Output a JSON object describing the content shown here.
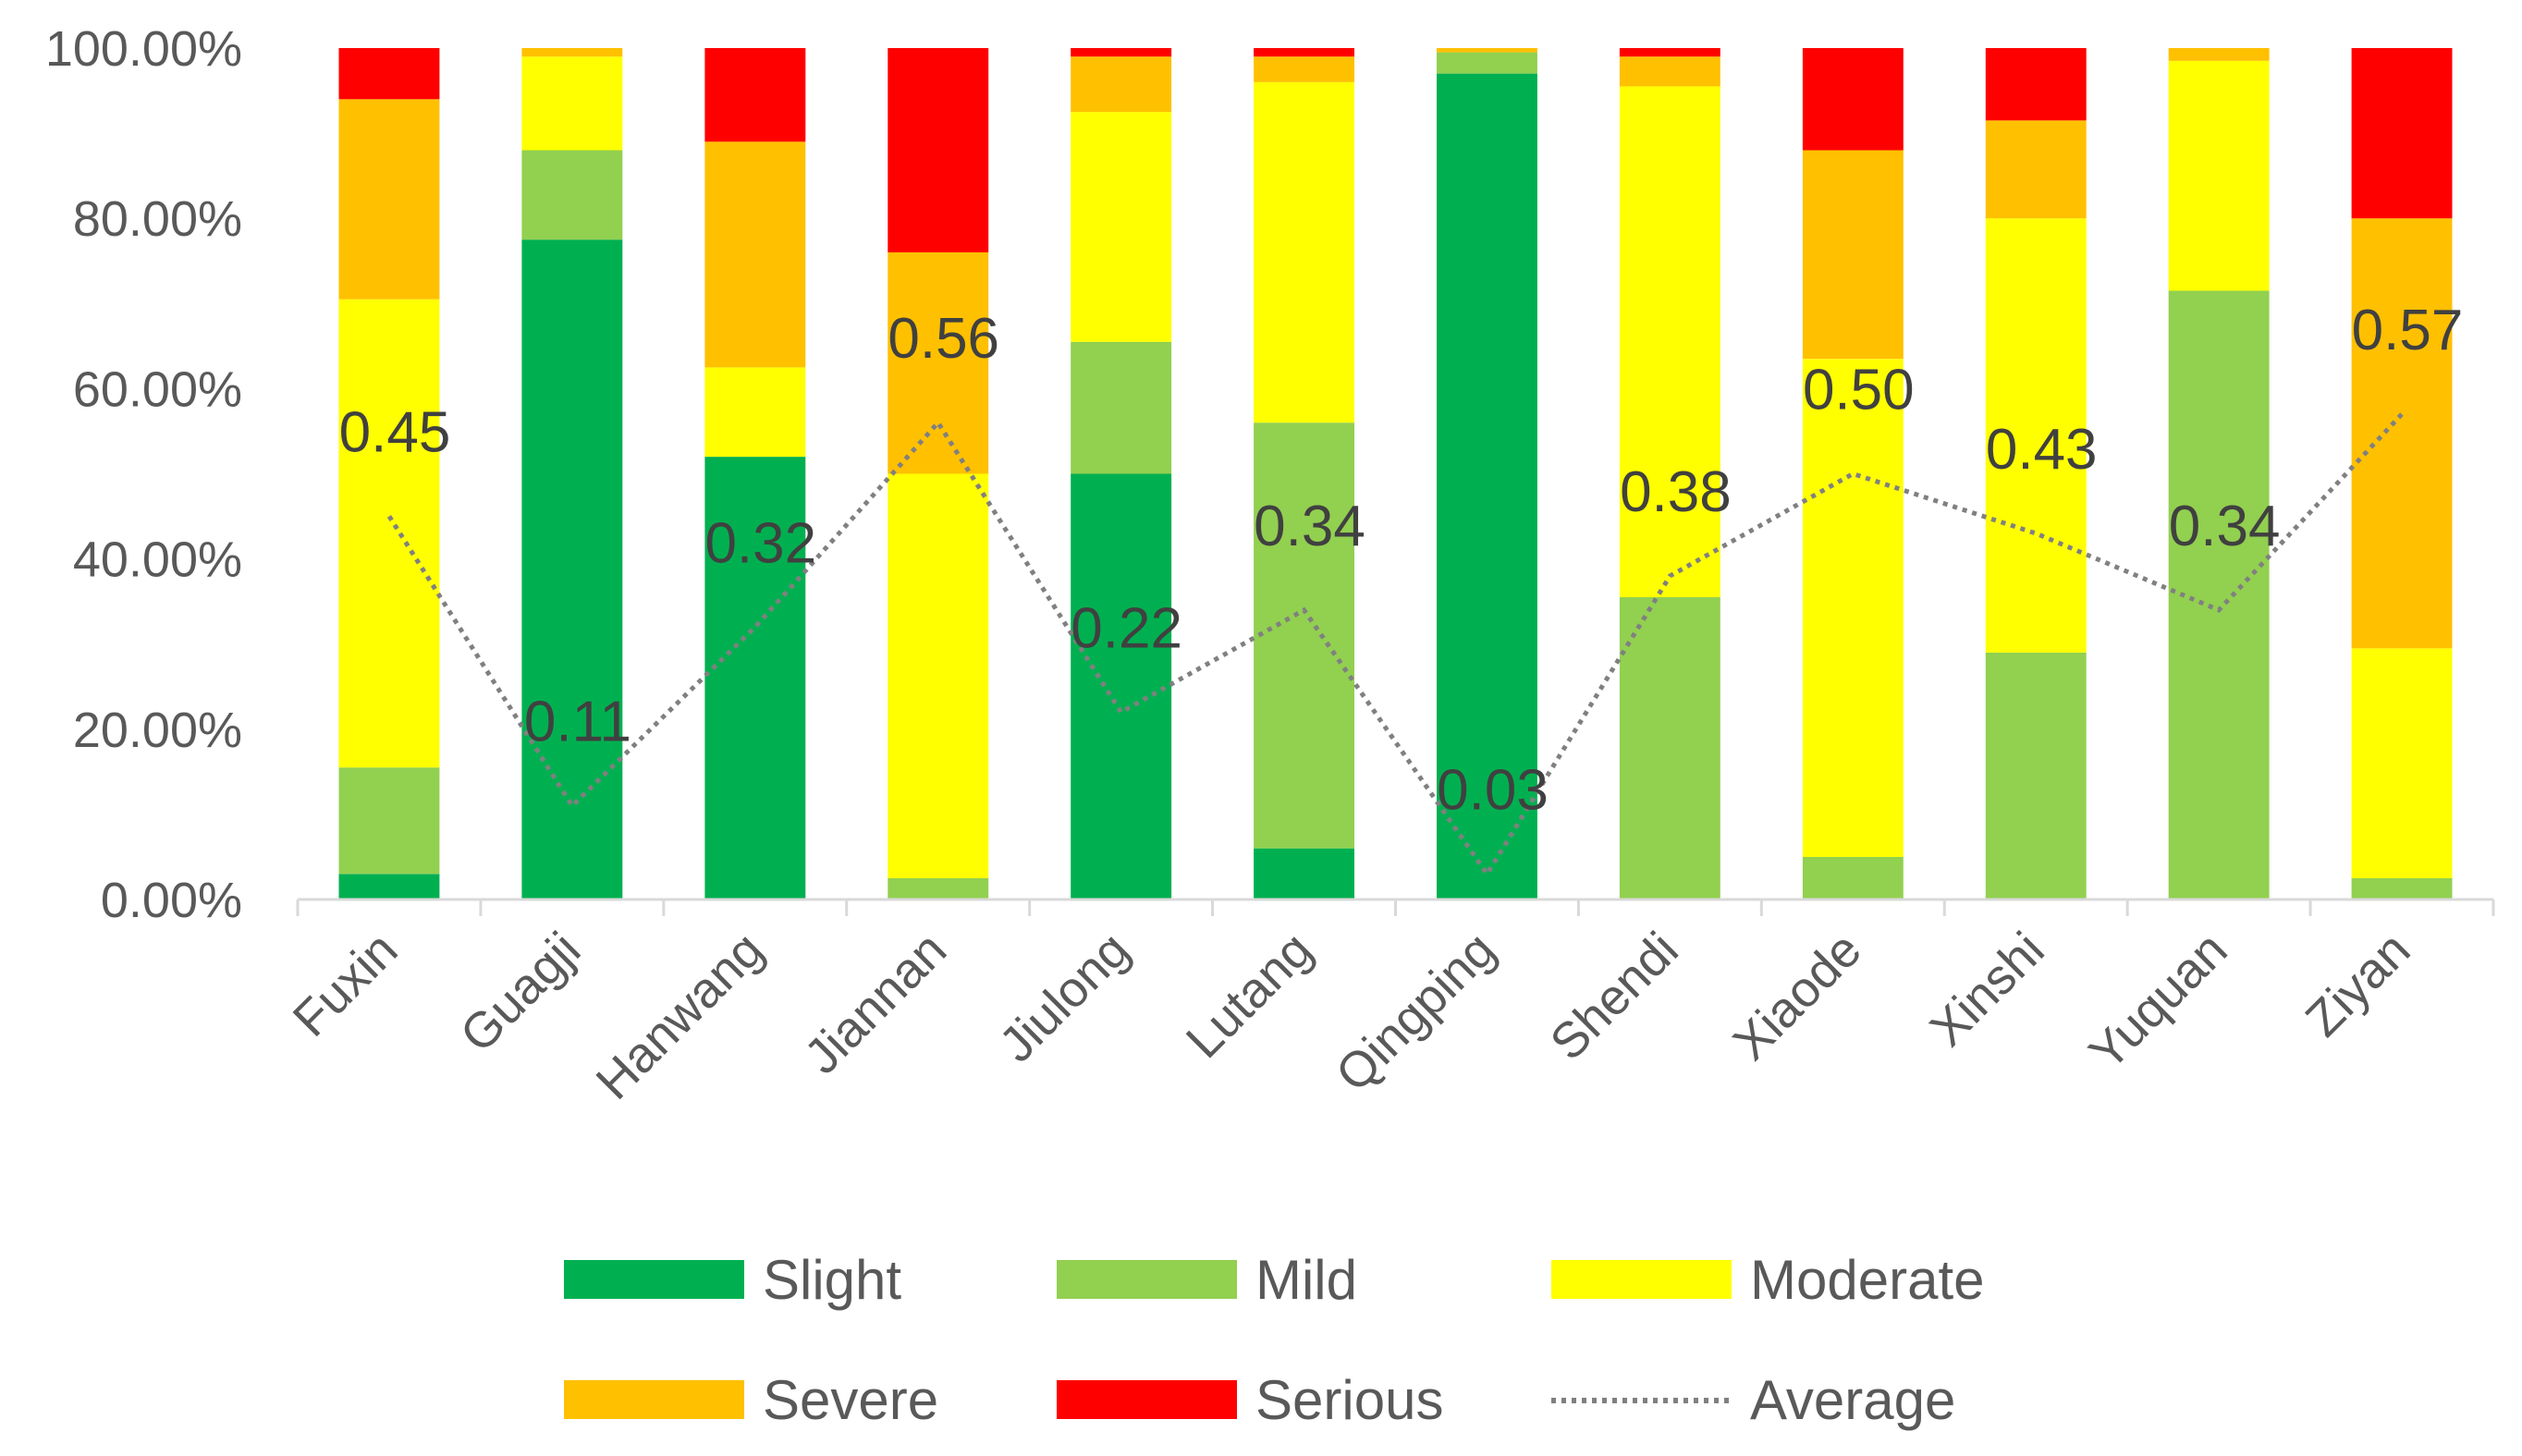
{
  "chart_data": {
    "type": "bar",
    "stacked": true,
    "categories": [
      "Fuxin",
      "Guagji",
      "Hanwang",
      "Jiannan",
      "Jiulong",
      "Lutang",
      "Qingping",
      "Shendi",
      "Xiaode",
      "Xinshi",
      "Yuquan",
      "Ziyan"
    ],
    "series": [
      {
        "name": "Slight",
        "color": "#00B050",
        "values": [
          3,
          77.5,
          52,
          0,
          50,
          6,
          97,
          0,
          0,
          0,
          0,
          0
        ]
      },
      {
        "name": "Mild",
        "color": "#92D050",
        "values": [
          12.5,
          10.5,
          0,
          2.5,
          15.5,
          50,
          2.5,
          35.5,
          5,
          29,
          71.5,
          2.5
        ]
      },
      {
        "name": "Moderate",
        "color": "#FFFF00",
        "values": [
          55,
          11,
          10.5,
          47.5,
          27,
          40,
          0,
          60,
          58.5,
          51,
          27,
          27
        ]
      },
      {
        "name": "Severe",
        "color": "#FFC000",
        "values": [
          23.5,
          1,
          26.5,
          26,
          6.5,
          3,
          0.5,
          3.5,
          24.5,
          11.5,
          1.5,
          50.5
        ]
      },
      {
        "name": "Serious",
        "color": "#FF0000",
        "values": [
          6,
          0,
          11,
          24,
          1,
          1,
          0,
          1,
          12,
          8.5,
          0,
          20
        ]
      }
    ],
    "line_series": {
      "name": "Average",
      "color": "#808080",
      "style": "dotted",
      "values": [
        0.45,
        0.11,
        0.32,
        0.56,
        0.22,
        0.34,
        0.03,
        0.38,
        0.5,
        0.43,
        0.34,
        0.57
      ],
      "labels": [
        "0.45",
        "0.11",
        "0.32",
        "0.56",
        "0.22",
        "0.34",
        "0.03",
        "0.38",
        "0.50",
        "0.43",
        "0.34",
        "0.57"
      ]
    },
    "yticks": [
      "0.00%",
      "20.00%",
      "40.00%",
      "60.00%",
      "80.00%",
      "100.00%"
    ],
    "ylim": [
      0,
      100
    ],
    "title": "",
    "xlabel": "",
    "ylabel": "",
    "grid": false,
    "legend_position": "bottom",
    "legend": [
      "Slight",
      "Mild",
      "Moderate",
      "Severe",
      "Serious",
      "Average"
    ]
  }
}
